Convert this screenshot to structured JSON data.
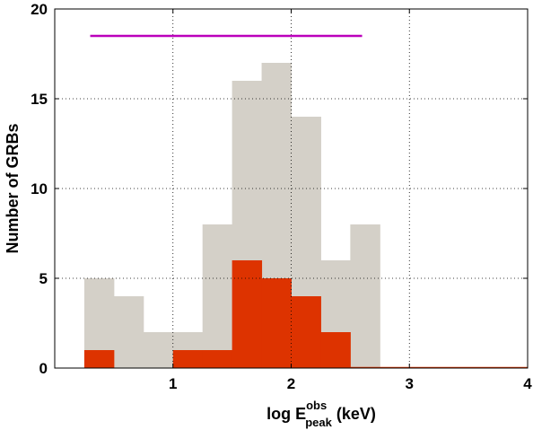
{
  "chart_data": {
    "type": "bar",
    "xlabel": {
      "prefix": "log E",
      "superscript": "obs",
      "subscript": "peak",
      "suffix": " (keV)"
    },
    "ylabel": "Number of GRBs",
    "xlim": [
      0,
      4
    ],
    "ylim": [
      0,
      20
    ],
    "xticks": [
      1,
      2,
      3,
      4
    ],
    "yticks": [
      0,
      5,
      10,
      15,
      20
    ],
    "grid": true,
    "bin_edges": [
      0.25,
      0.5,
      0.75,
      1.0,
      1.25,
      1.5,
      1.75,
      2.0,
      2.25,
      2.5,
      2.75,
      3.0,
      3.25,
      3.5,
      3.75,
      4.0
    ],
    "series": [
      {
        "values": [
          5,
          4,
          2,
          2,
          8,
          16,
          17,
          14,
          6,
          8,
          0,
          0,
          0,
          0,
          0
        ],
        "color": "#d4d0c8"
      },
      {
        "values": [
          1,
          0,
          0,
          1,
          1,
          6,
          5,
          4,
          2,
          0,
          0,
          0,
          0,
          0,
          0
        ],
        "color": "#dd3300"
      }
    ],
    "range_line": {
      "x": [
        0.3,
        2.6
      ],
      "y": 18.5,
      "color": "#bb00bb"
    }
  }
}
